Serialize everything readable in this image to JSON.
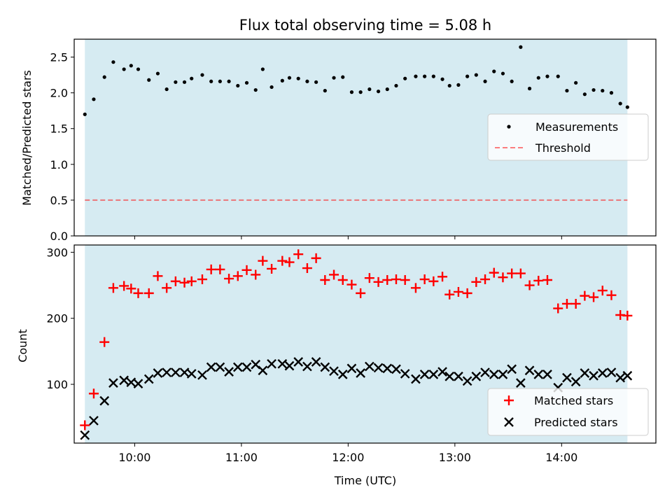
{
  "chart_data": [
    {
      "type": "scatter",
      "title": "Flux total observing time = 5.08 h",
      "xlabel": "",
      "ylabel": "Matched/Predicted stars",
      "x_axis": "time_utc",
      "xlim": [
        "09:26",
        "14:53"
      ],
      "ylim": [
        0,
        2.75
      ],
      "xticks": [
        "10:00",
        "11:00",
        "12:00",
        "13:00",
        "14:00"
      ],
      "yticks": [
        "0.0",
        "0.5",
        "1.0",
        "1.5",
        "2.0",
        "2.5"
      ],
      "shaded_span": [
        "09:32",
        "14:37"
      ],
      "threshold": 0.5,
      "legend": {
        "position": "center-right",
        "entries": [
          "Measurements",
          "Threshold"
        ]
      },
      "x": [
        "09:32",
        "09:37",
        "09:43",
        "09:48",
        "09:54",
        "09:58",
        "10:02",
        "10:08",
        "10:13",
        "10:18",
        "10:23",
        "10:28",
        "10:32",
        "10:38",
        "10:43",
        "10:48",
        "10:53",
        "10:58",
        "11:03",
        "11:08",
        "11:12",
        "11:17",
        "11:23",
        "11:27",
        "11:32",
        "11:37",
        "11:42",
        "11:47",
        "11:52",
        "11:57",
        "12:02",
        "12:07",
        "12:12",
        "12:17",
        "12:22",
        "12:27",
        "12:32",
        "12:38",
        "12:43",
        "12:48",
        "12:53",
        "12:57",
        "13:02",
        "13:07",
        "13:12",
        "13:17",
        "13:22",
        "13:27",
        "13:32",
        "13:37",
        "13:42",
        "13:47",
        "13:52",
        "13:58",
        "14:03",
        "14:08",
        "14:13",
        "14:18",
        "14:23",
        "14:28",
        "14:33",
        "14:37"
      ],
      "values": [
        1.7,
        1.91,
        2.22,
        2.43,
        2.33,
        2.38,
        2.33,
        2.18,
        2.27,
        2.05,
        2.15,
        2.15,
        2.2,
        2.25,
        2.16,
        2.16,
        2.16,
        2.1,
        2.14,
        2.04,
        2.33,
        2.08,
        2.17,
        2.21,
        2.2,
        2.16,
        2.15,
        2.03,
        2.21,
        2.22,
        2.01,
        2.01,
        2.05,
        2.02,
        2.05,
        2.1,
        2.2,
        2.23,
        2.23,
        2.23,
        2.19,
        2.1,
        2.11,
        2.23,
        2.25,
        2.16,
        2.3,
        2.27,
        2.16,
        2.64,
        2.06,
        2.21,
        2.23,
        2.23,
        2.03,
        2.14,
        1.98,
        2.04,
        2.03,
        2.0,
        1.85,
        1.8
      ]
    },
    {
      "type": "scatter",
      "xlabel": "Time (UTC)",
      "ylabel": "Count",
      "x_axis": "time_utc",
      "xlim": [
        "09:26",
        "14:53"
      ],
      "ylim": [
        11,
        311
      ],
      "xticks": [
        "10:00",
        "11:00",
        "12:00",
        "13:00",
        "14:00"
      ],
      "yticks": [
        "100",
        "200",
        "300"
      ],
      "shaded_span": [
        "09:32",
        "14:37"
      ],
      "legend": {
        "position": "lower-right",
        "entries": [
          "Matched stars",
          "Predicted stars"
        ]
      },
      "x": [
        "09:32",
        "09:37",
        "09:43",
        "09:48",
        "09:54",
        "09:58",
        "10:02",
        "10:08",
        "10:13",
        "10:18",
        "10:23",
        "10:28",
        "10:32",
        "10:38",
        "10:43",
        "10:48",
        "10:53",
        "10:58",
        "11:03",
        "11:08",
        "11:12",
        "11:17",
        "11:23",
        "11:27",
        "11:32",
        "11:37",
        "11:42",
        "11:47",
        "11:52",
        "11:57",
        "12:02",
        "12:07",
        "12:12",
        "12:17",
        "12:22",
        "12:27",
        "12:32",
        "12:38",
        "12:43",
        "12:48",
        "12:53",
        "12:57",
        "13:02",
        "13:07",
        "13:12",
        "13:17",
        "13:22",
        "13:27",
        "13:32",
        "13:37",
        "13:42",
        "13:47",
        "13:52",
        "13:58",
        "14:03",
        "14:08",
        "14:13",
        "14:18",
        "14:23",
        "14:28",
        "14:33",
        "14:37"
      ],
      "series": [
        {
          "name": "Matched stars",
          "values": [
            38,
            86,
            164,
            246,
            249,
            245,
            238,
            238,
            264,
            246,
            256,
            254,
            256,
            259,
            274,
            274,
            260,
            264,
            273,
            266,
            287,
            275,
            287,
            285,
            297,
            276,
            291,
            258,
            266,
            258,
            251,
            238,
            261,
            255,
            258,
            259,
            258,
            246,
            259,
            256,
            263,
            236,
            240,
            238,
            255,
            259,
            269,
            262,
            268,
            268,
            250,
            257,
            258,
            215,
            222,
            222,
            234,
            232,
            242,
            235,
            205,
            204
          ]
        },
        {
          "name": "Predicted stars",
          "values": [
            23,
            45,
            75,
            102,
            106,
            103,
            101,
            108,
            117,
            118,
            118,
            118,
            116,
            114,
            126,
            126,
            119,
            126,
            126,
            130,
            121,
            131,
            131,
            128,
            134,
            127,
            134,
            126,
            120,
            115,
            124,
            117,
            127,
            125,
            124,
            123,
            116,
            108,
            115,
            115,
            119,
            112,
            112,
            105,
            112,
            118,
            115,
            115,
            123,
            102,
            121,
            115,
            115,
            95,
            110,
            104,
            117,
            113,
            117,
            118,
            110,
            113
          ]
        }
      ]
    }
  ]
}
